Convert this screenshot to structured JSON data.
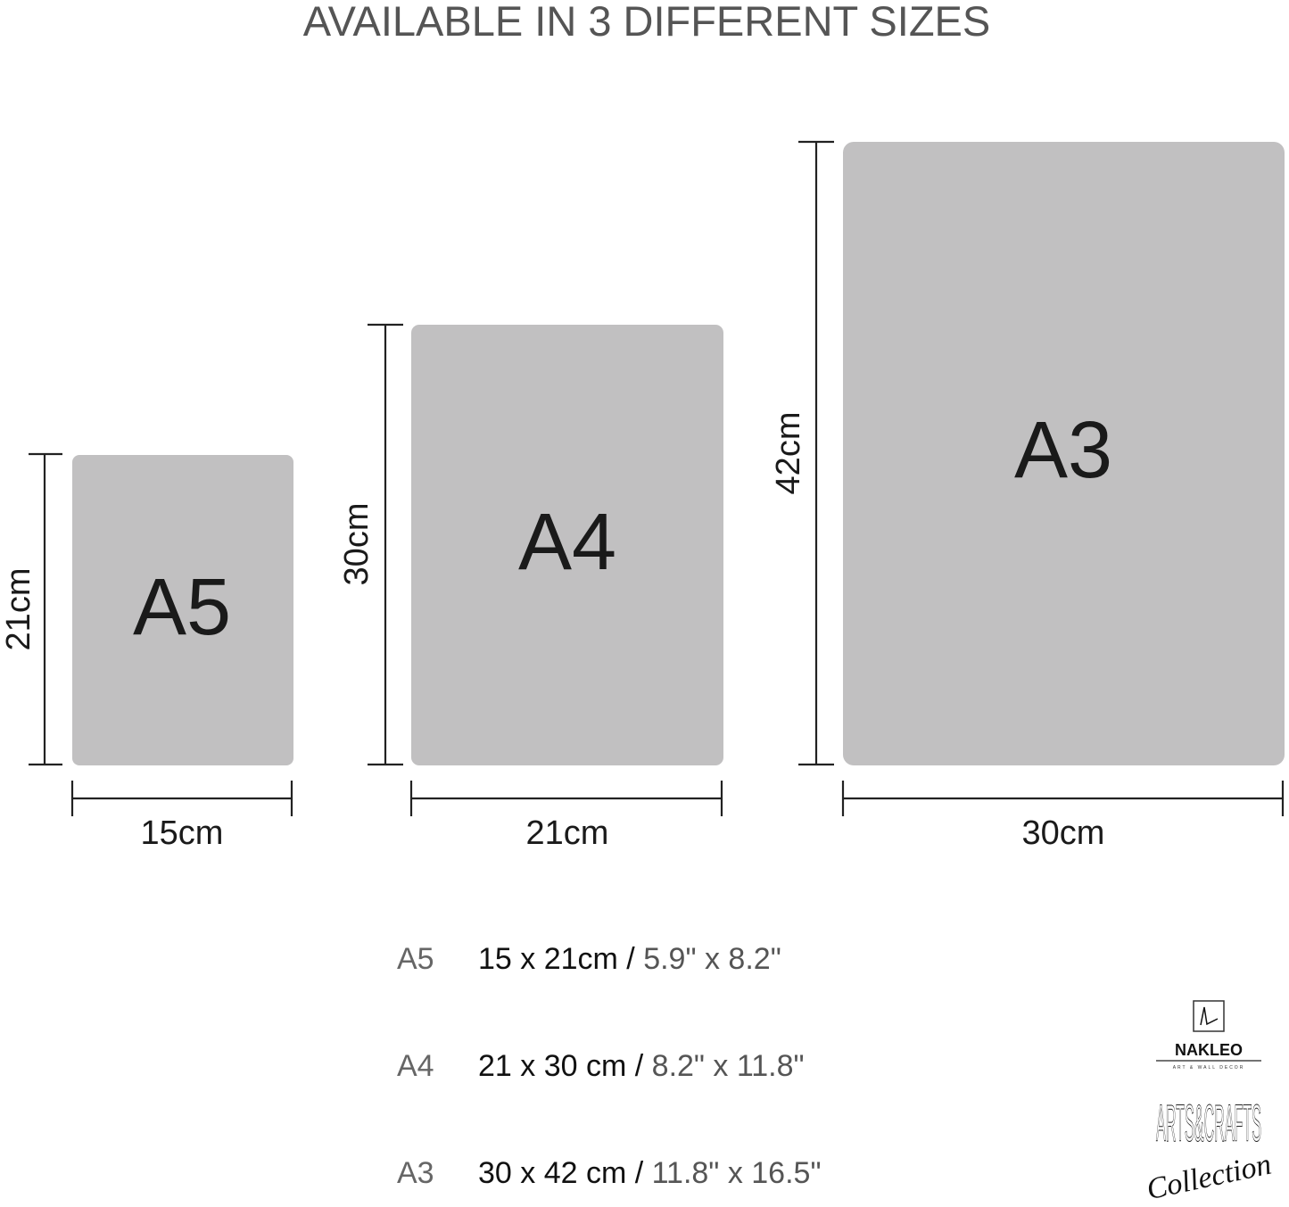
{
  "title": "AVAILABLE IN 3 DIFFERENT SIZES",
  "colors": {
    "sheet": "#c1c0c1",
    "title": "#555555",
    "dims_text": "#111111",
    "inches_text": "#555555"
  },
  "sizes": [
    {
      "name": "A5",
      "width_label": "15cm",
      "height_label": "21cm"
    },
    {
      "name": "A4",
      "width_label": "21cm",
      "height_label": "30cm"
    },
    {
      "name": "A3",
      "width_label": "30cm",
      "height_label": "42cm"
    }
  ],
  "table": [
    {
      "size": "A5",
      "metric": "15 x 21cm /",
      "imperial": "5.9\" x 8.2\""
    },
    {
      "size": "A4",
      "metric": "21 x 30 cm /",
      "imperial": "8.2\" x 11.8\""
    },
    {
      "size": "A3",
      "metric": "30 x 42 cm /",
      "imperial": "11.8\" x 16.5\""
    }
  ],
  "logo": {
    "brand": "NAKLEO",
    "tagline": "ART & WALL DECOR",
    "collection_title": "ARTS&CRAFTS",
    "collection_script": "Collection"
  }
}
